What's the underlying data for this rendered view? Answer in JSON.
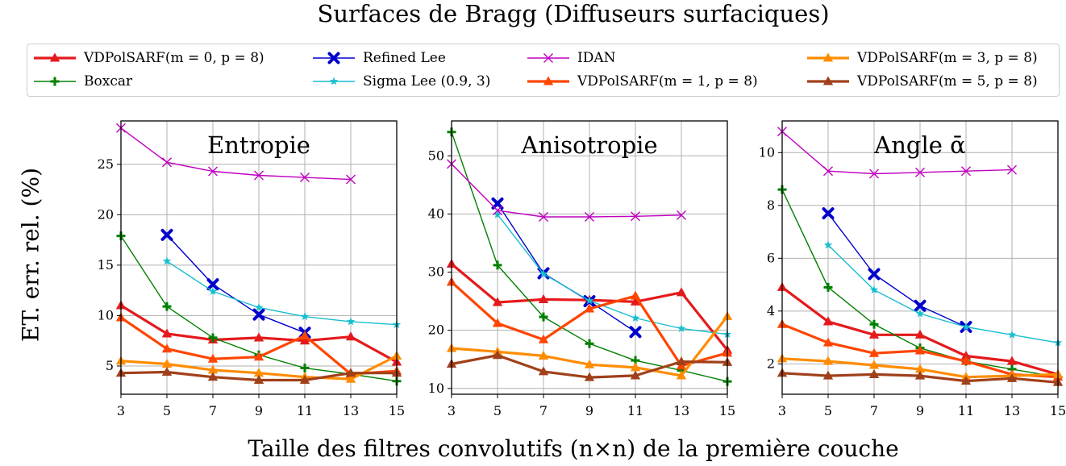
{
  "figure": {
    "suptitle": "Surfaces de Bragg (Diffuseurs surfaciques)",
    "ylabel": "ET. err. rel. (%)",
    "xlabel": "Taille des filtres convolutifs (n×n) de la première couche"
  },
  "legend": [
    {
      "name": "VDPolSARF(m = 0, p = 8)",
      "color": "#e41a1c",
      "marker": "triangle",
      "thick": true
    },
    {
      "name": "Boxcar",
      "color": "#008000",
      "marker": "plus",
      "thick": false
    },
    {
      "name": "Refined Lee",
      "color": "#0000cd",
      "marker": "x-bold",
      "thick": false
    },
    {
      "name": "Sigma Lee (0.9, 3)",
      "color": "#17becf",
      "marker": "star",
      "thick": false
    },
    {
      "name": "IDAN",
      "color": "#bf00bf",
      "marker": "x-thin",
      "thick": false
    },
    {
      "name": "VDPolSARF(m = 1, p = 8)",
      "color": "#ff4500",
      "marker": "triangle",
      "thick": true
    },
    {
      "name": "VDPolSARF(m = 3, p = 8)",
      "color": "#ff8c00",
      "marker": "triangle",
      "thick": true
    },
    {
      "name": "VDPolSARF(m = 5, p = 8)",
      "color": "#a0401a",
      "marker": "triangle",
      "thick": true
    }
  ],
  "chart_data": [
    {
      "type": "line",
      "title": "Entropie",
      "x": [
        3,
        5,
        7,
        9,
        11,
        13,
        15
      ],
      "xlim": [
        3,
        15
      ],
      "ylim": [
        2.2,
        29.3
      ],
      "yticks": [
        5,
        10,
        15,
        20,
        25
      ],
      "grid": true,
      "series": [
        {
          "name": "VDPolSARF(m = 0, p = 8)",
          "values": [
            11.0,
            8.2,
            7.6,
            7.8,
            7.5,
            7.9,
            5.4
          ]
        },
        {
          "name": "Boxcar",
          "values": [
            17.9,
            10.9,
            7.8,
            6.1,
            4.8,
            4.2,
            3.5
          ]
        },
        {
          "name": "Refined Lee",
          "values": [
            null,
            18.0,
            13.1,
            10.1,
            8.3,
            null,
            null
          ]
        },
        {
          "name": "Sigma Lee (0.9, 3)",
          "values": [
            null,
            15.4,
            12.4,
            10.8,
            9.9,
            9.4,
            9.1
          ]
        },
        {
          "name": "IDAN",
          "values": [
            28.6,
            25.2,
            24.3,
            23.9,
            23.7,
            23.5,
            null
          ]
        },
        {
          "name": "VDPolSARF(m = 1, p = 8)",
          "values": [
            9.8,
            6.7,
            5.7,
            5.9,
            8.0,
            4.2,
            4.5
          ]
        },
        {
          "name": "VDPolSARF(m = 3, p = 8)",
          "values": [
            5.5,
            5.2,
            4.6,
            4.3,
            3.9,
            3.7,
            6.0
          ]
        },
        {
          "name": "VDPolSARF(m = 5, p = 8)",
          "values": [
            4.3,
            4.4,
            3.9,
            3.6,
            3.6,
            4.3,
            4.3
          ]
        }
      ]
    },
    {
      "type": "line",
      "title": "Anisotropie",
      "x": [
        3,
        5,
        7,
        9,
        11,
        13,
        15
      ],
      "xlim": [
        3,
        15
      ],
      "ylim": [
        9.0,
        56.0
      ],
      "yticks": [
        10,
        20,
        30,
        40,
        50
      ],
      "grid": true,
      "series": [
        {
          "name": "VDPolSARF(m = 0, p = 8)",
          "values": [
            31.4,
            24.8,
            25.3,
            25.2,
            24.9,
            26.5,
            16.6
          ]
        },
        {
          "name": "Boxcar",
          "values": [
            54.1,
            31.2,
            22.3,
            17.7,
            14.8,
            13.1,
            11.2
          ]
        },
        {
          "name": "Refined Lee",
          "values": [
            null,
            41.8,
            29.8,
            25.0,
            19.7,
            null,
            null
          ]
        },
        {
          "name": "Sigma Lee (0.9, 3)",
          "values": [
            null,
            39.9,
            29.7,
            25.1,
            22.1,
            20.3,
            19.3
          ]
        },
        {
          "name": "IDAN",
          "values": [
            48.6,
            40.6,
            39.5,
            39.5,
            39.6,
            39.8,
            null
          ]
        },
        {
          "name": "VDPolSARF(m = 1, p = 8)",
          "values": [
            28.3,
            21.2,
            18.4,
            23.7,
            25.9,
            13.9,
            16.1
          ]
        },
        {
          "name": "VDPolSARF(m = 3, p = 8)",
          "values": [
            16.9,
            16.3,
            15.6,
            14.1,
            13.6,
            12.2,
            22.4
          ]
        },
        {
          "name": "VDPolSARF(m = 5, p = 8)",
          "values": [
            14.2,
            15.7,
            12.9,
            11.9,
            12.2,
            14.6,
            14.5
          ]
        }
      ]
    },
    {
      "type": "line",
      "title": "Angle ᾱ",
      "x": [
        3,
        5,
        7,
        9,
        11,
        13,
        15
      ],
      "xlim": [
        3,
        15
      ],
      "ylim": [
        0.85,
        11.2
      ],
      "yticks": [
        2,
        4,
        6,
        8,
        10
      ],
      "grid": true,
      "series": [
        {
          "name": "VDPolSARF(m = 0, p = 8)",
          "values": [
            4.9,
            3.6,
            3.1,
            3.1,
            2.3,
            2.1,
            1.6
          ]
        },
        {
          "name": "Boxcar",
          "values": [
            8.6,
            4.9,
            3.5,
            2.6,
            2.1,
            1.8,
            1.5
          ]
        },
        {
          "name": "Refined Lee",
          "values": [
            null,
            7.7,
            5.4,
            4.2,
            3.4,
            null,
            null
          ]
        },
        {
          "name": "Sigma Lee (0.9, 3)",
          "values": [
            null,
            6.5,
            4.8,
            3.9,
            3.4,
            3.1,
            2.8
          ]
        },
        {
          "name": "IDAN",
          "values": [
            10.8,
            9.3,
            9.2,
            9.25,
            9.3,
            9.35,
            null
          ]
        },
        {
          "name": "VDPolSARF(m = 1, p = 8)",
          "values": [
            3.5,
            2.8,
            2.4,
            2.5,
            2.1,
            1.6,
            1.5
          ]
        },
        {
          "name": "VDPolSARF(m = 3, p = 8)",
          "values": [
            2.2,
            2.1,
            1.95,
            1.8,
            1.5,
            1.55,
            1.6
          ]
        },
        {
          "name": "VDPolSARF(m = 5, p = 8)",
          "values": [
            1.65,
            1.55,
            1.6,
            1.55,
            1.35,
            1.45,
            1.3
          ]
        }
      ]
    }
  ]
}
